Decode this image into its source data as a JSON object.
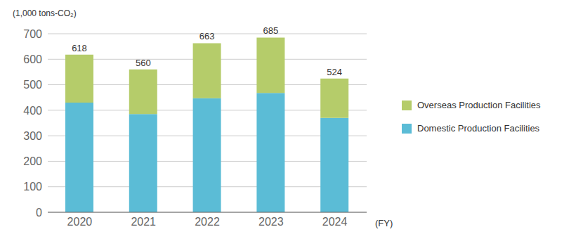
{
  "chart_data": {
    "type": "bar",
    "stacked": true,
    "categories": [
      "2020",
      "2021",
      "2022",
      "2023",
      "2024"
    ],
    "series": [
      {
        "name": "Domestic Production Facilities",
        "color": "#5bbcd6",
        "values": [
          430,
          385,
          447,
          468,
          370
        ]
      },
      {
        "name": "Overseas Production Facilities",
        "color": "#b5cc6a",
        "values": [
          188,
          175,
          216,
          217,
          154
        ]
      }
    ],
    "totals": [
      618,
      560,
      663,
      685,
      524
    ],
    "y_label": "(1,000 tons-CO₂)",
    "x_label": "(FY)",
    "ylim": [
      0,
      700
    ],
    "yticks": [
      0,
      100,
      200,
      300,
      400,
      500,
      600,
      700
    ],
    "grid": true
  }
}
